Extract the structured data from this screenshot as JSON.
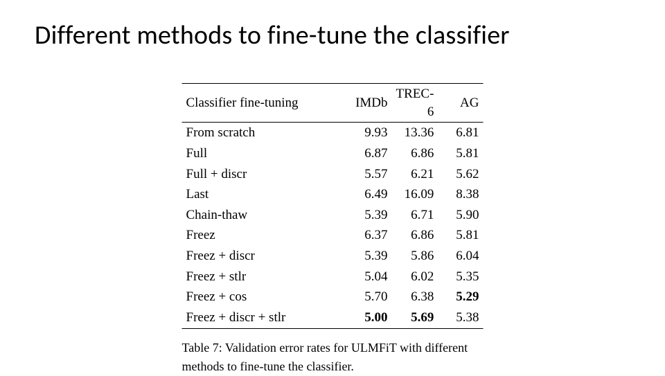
{
  "slide": {
    "title": "Different methods to fine-tune the classifier",
    "title_fontsize": 38,
    "title_font_family": "sans-serif",
    "background_color": "#ffffff",
    "text_color": "#000000"
  },
  "table": {
    "type": "table",
    "font_family": "Times New Roman",
    "body_fontsize": 19,
    "border_color": "#000000",
    "top_rule_width": 1.5,
    "mid_rule_width": 1.0,
    "bottom_rule_width": 1.5,
    "columns": [
      {
        "key": "method",
        "label": "Classifier fine-tuning",
        "align": "left"
      },
      {
        "key": "imdb",
        "label": "IMDb",
        "align": "right"
      },
      {
        "key": "trec6",
        "label": "TREC-6",
        "align": "right"
      },
      {
        "key": "ag",
        "label": "AG",
        "align": "right"
      }
    ],
    "rows": [
      {
        "method": "From scratch",
        "imdb": "9.93",
        "trec6": "13.36",
        "ag": "6.81"
      },
      {
        "method": "Full",
        "imdb": "6.87",
        "trec6": "6.86",
        "ag": "5.81"
      },
      {
        "method": "Full + discr",
        "imdb": "5.57",
        "trec6": "6.21",
        "ag": "5.62"
      },
      {
        "method": "Last",
        "imdb": "6.49",
        "trec6": "16.09",
        "ag": "8.38"
      },
      {
        "method": "Chain-thaw",
        "imdb": "5.39",
        "trec6": "6.71",
        "ag": "5.90"
      },
      {
        "method": "Freez",
        "imdb": "6.37",
        "trec6": "6.86",
        "ag": "5.81"
      },
      {
        "method": "Freez + discr",
        "imdb": "5.39",
        "trec6": "5.86",
        "ag": "6.04"
      },
      {
        "method": "Freez + stlr",
        "imdb": "5.04",
        "trec6": "6.02",
        "ag": "5.35"
      },
      {
        "method": "Freez + cos",
        "imdb": "5.70",
        "trec6": "6.38",
        "ag": "5.29",
        "bold": {
          "ag": true
        }
      },
      {
        "method": "Freez + discr + stlr",
        "imdb": "5.00",
        "trec6": "5.69",
        "ag": "5.38",
        "bold": {
          "imdb": true,
          "trec6": true
        }
      }
    ],
    "caption": "Table 7: Validation error rates for ULMFiT with different methods to fine-tune the classifier.",
    "caption_fontsize": 18
  }
}
